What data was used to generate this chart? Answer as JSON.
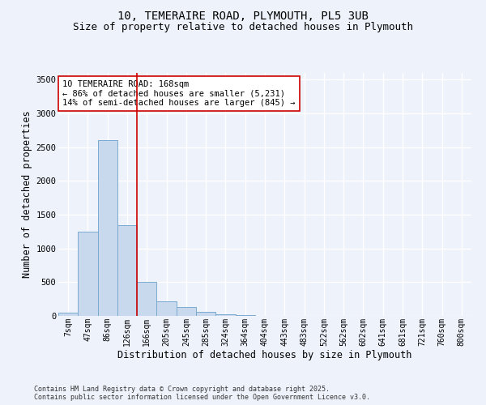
{
  "title_line1": "10, TEMERAIRE ROAD, PLYMOUTH, PL5 3UB",
  "title_line2": "Size of property relative to detached houses in Plymouth",
  "xlabel": "Distribution of detached houses by size in Plymouth",
  "ylabel": "Number of detached properties",
  "categories": [
    "7sqm",
    "47sqm",
    "86sqm",
    "126sqm",
    "166sqm",
    "205sqm",
    "245sqm",
    "285sqm",
    "324sqm",
    "364sqm",
    "404sqm",
    "443sqm",
    "483sqm",
    "522sqm",
    "562sqm",
    "602sqm",
    "641sqm",
    "681sqm",
    "721sqm",
    "760sqm",
    "800sqm"
  ],
  "values": [
    50,
    1250,
    2600,
    1350,
    500,
    220,
    130,
    55,
    30,
    10,
    5,
    2,
    1,
    0,
    0,
    0,
    0,
    0,
    0,
    0,
    0
  ],
  "bar_color": "#c9d9ed",
  "bar_edge_color": "#7aaad0",
  "vline_x": 3.5,
  "vline_color": "#cc0000",
  "annotation_text": "10 TEMERAIRE ROAD: 168sqm\n← 86% of detached houses are smaller (5,231)\n14% of semi-detached houses are larger (845) →",
  "annotation_box_color": "#ffffff",
  "annotation_box_edge_color": "#cc0000",
  "ylim": [
    0,
    3600
  ],
  "yticks": [
    0,
    500,
    1000,
    1500,
    2000,
    2500,
    3000,
    3500
  ],
  "background_color": "#eef2fb",
  "footer_line1": "Contains HM Land Registry data © Crown copyright and database right 2025.",
  "footer_line2": "Contains public sector information licensed under the Open Government Licence v3.0.",
  "grid_color": "#ffffff",
  "title_fontsize": 10,
  "subtitle_fontsize": 9,
  "axis_label_fontsize": 8.5,
  "tick_fontsize": 7,
  "annotation_fontsize": 7.5,
  "footer_fontsize": 6
}
